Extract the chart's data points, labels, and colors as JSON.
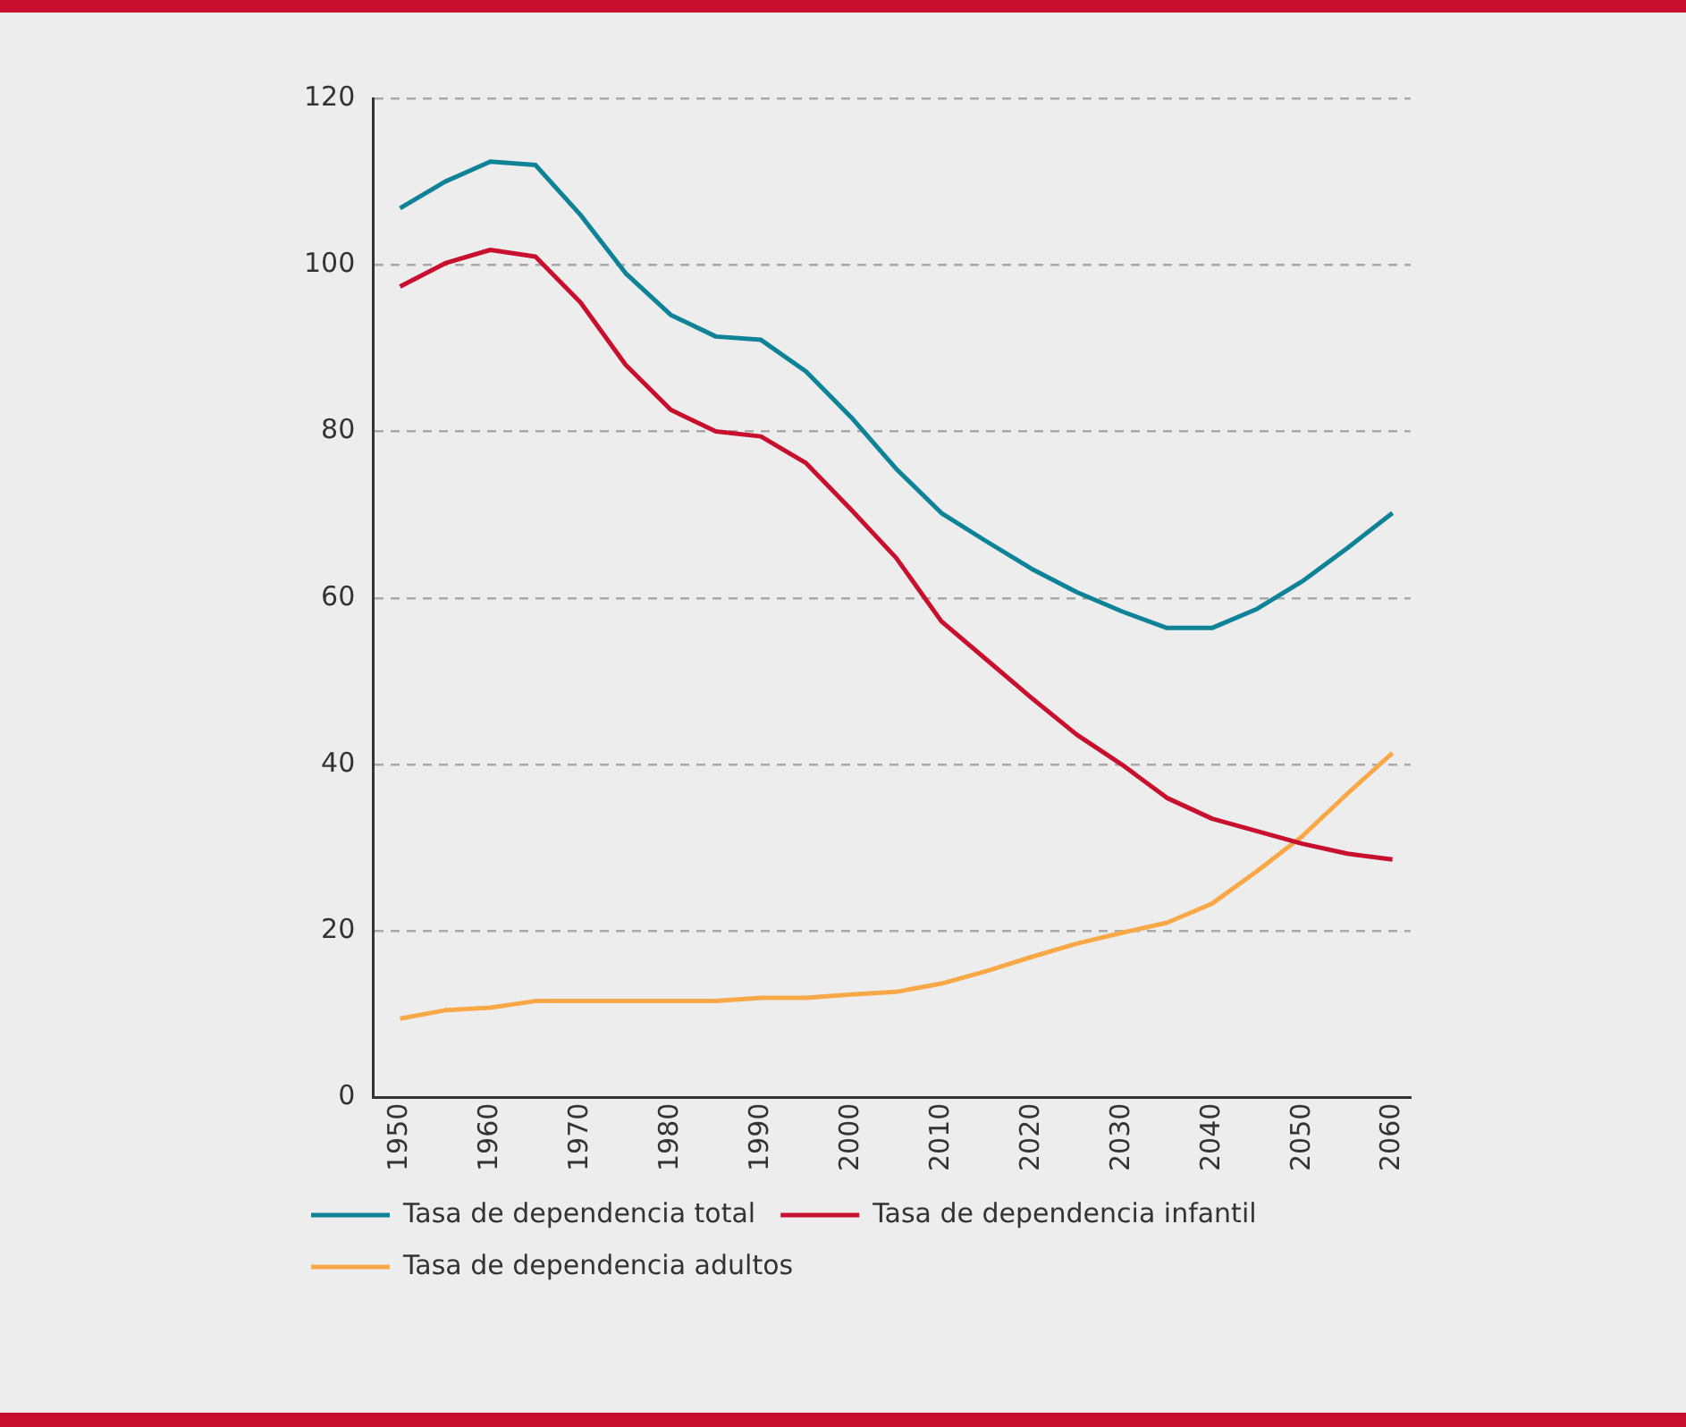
{
  "chart_data": {
    "type": "line",
    "x": [
      1950,
      1955,
      1960,
      1965,
      1970,
      1975,
      1980,
      1985,
      1990,
      1995,
      2000,
      2005,
      2010,
      2015,
      2020,
      2025,
      2030,
      2035,
      2040,
      2045,
      2050,
      2055,
      2060
    ],
    "series": [
      {
        "name": "Tasa de dependencia total",
        "color": "#0e8296",
        "values": [
          106.8,
          110,
          112.4,
          112,
          106,
          99,
          94,
          91.4,
          91,
          87.2,
          81.7,
          75.5,
          70.2,
          66.8,
          63.5,
          60.7,
          58.4,
          56.4,
          56.4,
          58.7,
          62,
          66,
          70.2
        ]
      },
      {
        "name": "Tasa de dependencia infantil",
        "color": "#c8102e",
        "values": [
          97.4,
          100.2,
          101.8,
          101,
          95.5,
          88,
          82.6,
          80,
          79.4,
          76.2,
          70.6,
          64.8,
          57.2,
          52.6,
          48,
          43.6,
          40,
          36,
          33.5,
          32,
          30.5,
          29.3,
          28.6
        ]
      },
      {
        "name": "Tasa de dependencia adultos",
        "color": "#f9a847",
        "values": [
          9.5,
          10.5,
          10.8,
          11.6,
          11.6,
          11.6,
          11.6,
          11.6,
          12,
          12,
          12.4,
          12.7,
          13.7,
          15.2,
          16.9,
          18.5,
          19.8,
          21,
          23.3,
          27.2,
          31.4,
          36.5,
          41.4
        ]
      }
    ],
    "xlim": [
      1947,
      2062
    ],
    "xticks": [
      1950,
      1960,
      1970,
      1980,
      1990,
      2000,
      2010,
      2020,
      2030,
      2040,
      2050,
      2060
    ],
    "ylim": [
      0,
      120
    ],
    "yticks": [
      0,
      20,
      40,
      60,
      80,
      100,
      120
    ],
    "grid": "y",
    "legend": "bottom",
    "marker": "none",
    "line_style": "solid"
  }
}
